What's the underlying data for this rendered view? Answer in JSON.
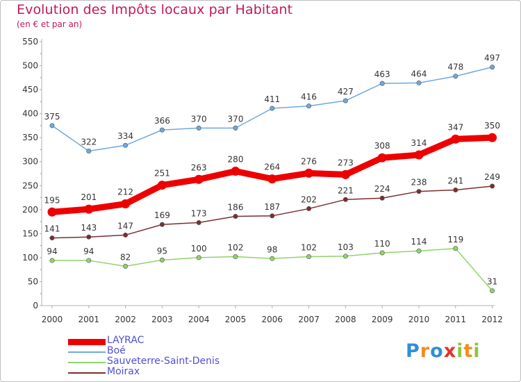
{
  "header": {
    "title": "Evolution des Impôts locaux par Habitant",
    "subtitle": "(en € et par an)"
  },
  "logo": {
    "text": "Proxiti",
    "letters": [
      {
        "ch": "P",
        "color": "#2f8fd8"
      },
      {
        "ch": "r",
        "color": "#f28c1f"
      },
      {
        "ch": "o",
        "color": "#2f8fd8"
      },
      {
        "ch": "x",
        "color": "#e5322b"
      },
      {
        "ch": "i",
        "color": "#8cc63f"
      },
      {
        "ch": "t",
        "color": "#f28c1f"
      },
      {
        "ch": "i",
        "color": "#8cc63f"
      }
    ]
  },
  "chart_data": {
    "type": "line",
    "title": "Evolution des Impôts locaux par Habitant",
    "subtitle": "(en € et par an)",
    "xlabel": "",
    "ylabel": "",
    "ylim": [
      0,
      550
    ],
    "yticks": [
      0,
      50,
      100,
      150,
      200,
      250,
      300,
      350,
      400,
      450,
      500,
      550
    ],
    "grid": false,
    "legend_position": "bottom-left",
    "x": [
      "2000",
      "2001",
      "2002",
      "2003",
      "2004",
      "2005",
      "2006",
      "2007",
      "2008",
      "2009",
      "2010",
      "2011",
      "2012"
    ],
    "series": [
      {
        "name": "LAYRAC",
        "color": "#ee0000",
        "emphasis": true,
        "values": [
          195,
          201,
          212,
          251,
          263,
          280,
          264,
          276,
          273,
          308,
          314,
          347,
          350
        ]
      },
      {
        "name": "Boé",
        "color": "#6fa8dc",
        "values": [
          375,
          322,
          334,
          366,
          370,
          370,
          411,
          416,
          427,
          463,
          464,
          478,
          497
        ]
      },
      {
        "name": "Sauveterre-Saint-Denis",
        "color": "#8fd36a",
        "values": [
          94,
          94,
          82,
          95,
          100,
          102,
          98,
          102,
          103,
          110,
          114,
          119,
          31
        ]
      },
      {
        "name": "Moirax",
        "color": "#7a2e2e",
        "values": [
          141,
          143,
          147,
          169,
          173,
          186,
          187,
          202,
          221,
          224,
          238,
          241,
          249
        ]
      }
    ]
  }
}
